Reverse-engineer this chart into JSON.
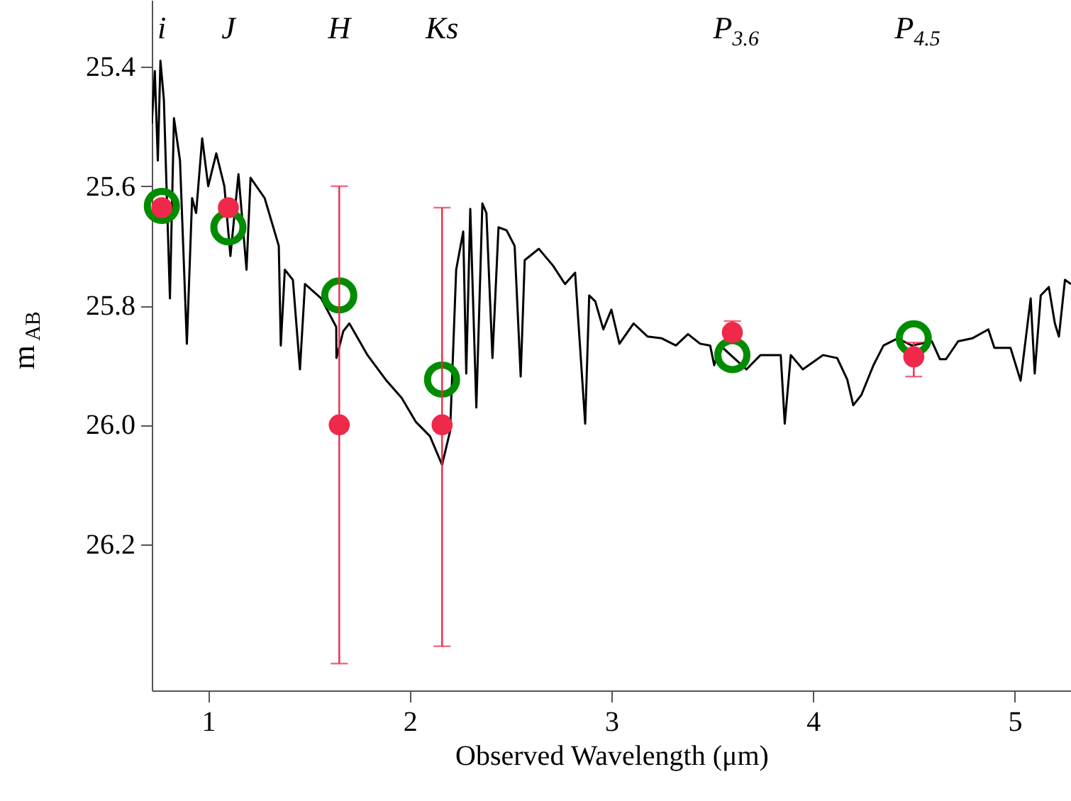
{
  "chart_data": {
    "type": "line",
    "xlabel": "Observed Wavelength (μm)",
    "ylabel": "m$_{AB}$",
    "xlim": [
      0.72,
      5.28
    ],
    "xticks": [
      1,
      2,
      3,
      4,
      5
    ],
    "ylim": [
      26.445,
      25.288
    ],
    "yticks": [
      25.4,
      25.6,
      25.8,
      {
        "value": 26.0,
        "label": "26.0"
      },
      26.2
    ],
    "grid": false,
    "series": [
      {
        "color": "#000000",
        "marker": "none",
        "line_style": "solid",
        "x": [
          0.72,
          0.735,
          0.75,
          0.763,
          0.78,
          0.81,
          0.83,
          0.86,
          0.894,
          0.92,
          0.94,
          0.97,
          1.0,
          1.04,
          1.08,
          1.11,
          1.15,
          1.19,
          1.21,
          1.28,
          1.35,
          1.36,
          1.38,
          1.42,
          1.455,
          1.48,
          1.56,
          1.635,
          1.636,
          1.67,
          1.7,
          1.79,
          1.88,
          1.96,
          2.03,
          2.1,
          2.16,
          2.2,
          2.23,
          2.265,
          2.28,
          2.3,
          2.33,
          2.36,
          2.38,
          2.41,
          2.44,
          2.48,
          2.52,
          2.55,
          2.57,
          2.64,
          2.71,
          2.77,
          2.82,
          2.87,
          2.89,
          2.92,
          2.96,
          3.0,
          3.04,
          3.11,
          3.18,
          3.25,
          3.32,
          3.38,
          3.44,
          3.49,
          3.51,
          3.54,
          3.67,
          3.69,
          3.74,
          3.84,
          3.86,
          3.89,
          3.95,
          4.05,
          4.12,
          4.17,
          4.2,
          4.24,
          4.3,
          4.35,
          4.42,
          4.49,
          4.59,
          4.63,
          4.66,
          4.72,
          4.79,
          4.87,
          4.9,
          4.98,
          5.03,
          5.08,
          5.1,
          5.13,
          5.17,
          5.2,
          5.22,
          5.25,
          5.28
        ],
        "values": [
          25.495,
          25.407,
          25.557,
          25.39,
          25.455,
          25.788,
          25.486,
          25.557,
          25.864,
          25.62,
          25.645,
          25.52,
          25.6,
          25.545,
          25.6,
          25.717,
          25.58,
          25.74,
          25.586,
          25.62,
          25.7,
          25.867,
          25.74,
          25.757,
          25.907,
          25.764,
          25.788,
          25.836,
          25.888,
          25.843,
          25.83,
          25.883,
          25.924,
          25.955,
          25.995,
          26.019,
          26.067,
          26.01,
          25.74,
          25.676,
          25.914,
          25.638,
          25.971,
          25.629,
          25.645,
          25.888,
          25.669,
          25.674,
          25.7,
          25.919,
          25.724,
          25.705,
          25.733,
          25.764,
          25.745,
          25.998,
          25.783,
          25.793,
          25.84,
          25.807,
          25.864,
          25.83,
          25.852,
          25.855,
          25.867,
          25.848,
          25.864,
          25.867,
          25.9,
          25.867,
          25.907,
          25.9,
          25.883,
          25.883,
          25.998,
          25.883,
          25.907,
          25.883,
          25.888,
          25.924,
          25.967,
          25.95,
          25.9,
          25.867,
          25.855,
          25.867,
          25.86,
          25.89,
          25.89,
          25.86,
          25.855,
          25.84,
          25.871,
          25.871,
          25.926,
          25.788,
          25.914,
          25.783,
          25.769,
          25.83,
          25.852,
          25.757,
          25.764
        ]
      },
      {
        "type": "scatter",
        "color": "#008c00",
        "marker": "circle",
        "x": [
          0.77,
          1.1,
          1.65,
          2.16,
          3.6,
          4.5
        ],
        "values": [
          25.633,
          25.669,
          25.783,
          25.924,
          25.883,
          25.855
        ]
      },
      {
        "type": "scatter",
        "color": "#f0284a",
        "marker": "circle",
        "x": [
          0.77,
          1.1,
          1.65,
          2.16,
          3.6,
          4.5
        ],
        "values": [
          25.636,
          25.636,
          26.0,
          26.0,
          25.845,
          25.886
        ],
        "errors": [
          null,
          null,
          [
            25.6,
            26.4
          ],
          [
            25.636,
            26.371
          ],
          [
            25.826,
            25.86
          ],
          [
            25.862,
            25.919
          ]
        ]
      }
    ],
    "annotations": [
      "i",
      "J",
      "H",
      "Ks",
      "P$_{3.6}$",
      "P$_{4.5}$"
    ]
  }
}
